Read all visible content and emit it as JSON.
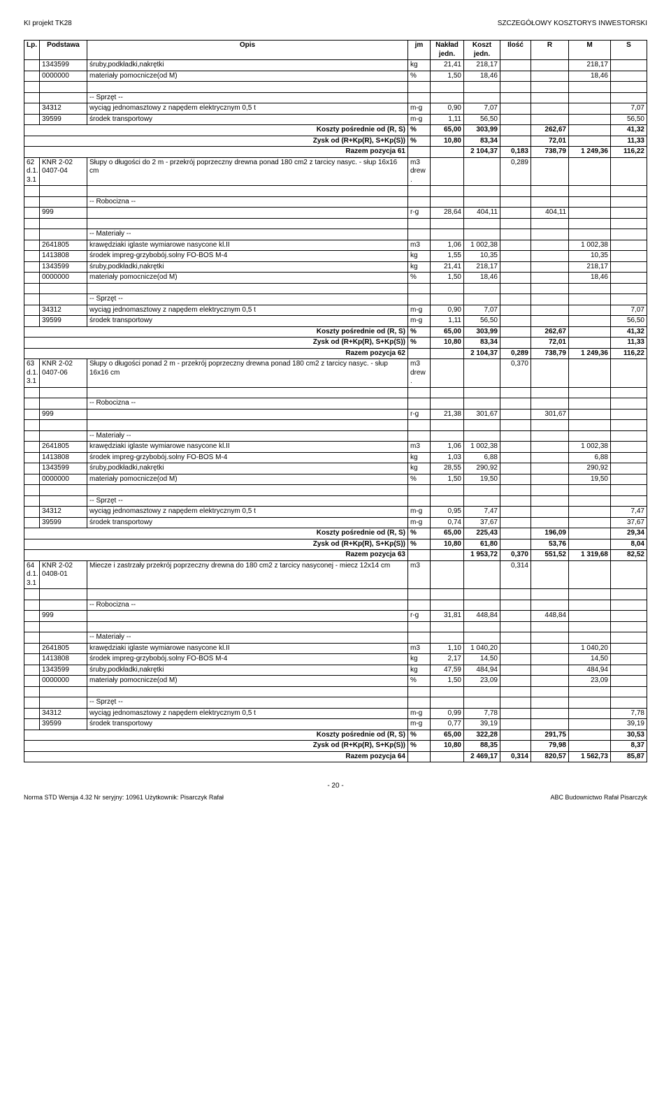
{
  "header": {
    "left": "KI projekt TK28",
    "right": "SZCZEGÓŁOWY KOSZTORYS INWESTORSKI"
  },
  "cols": {
    "lp": "Lp.",
    "podstawa": "Podstawa",
    "opis": "Opis",
    "jm": "jm",
    "naklad": "Nakład\njedn.",
    "koszt": "Koszt\njedn.",
    "ilosc": "Ilość",
    "r": "R",
    "m": "M",
    "s": "S"
  },
  "labels": {
    "materialy": "-- Materiały --",
    "sprzet": "-- Sprzęt --",
    "robocizna": "-- Robocizna --",
    "koszty": "Koszty pośrednie od (R, S)",
    "zysk": "Zysk od (R+Kp(R), S+Kp(S))",
    "razem": "Razem pozycja "
  },
  "groups": [
    {
      "lead": null,
      "blocks": [
        {
          "prefix": null,
          "rows": [
            {
              "lp": "",
              "pod": "1343599",
              "opis": "śruby,podkładki,nakrętki",
              "jm": "kg",
              "nak": "21,41",
              "koszt": "218,17",
              "il": "",
              "r": "",
              "m": "218,17",
              "s": ""
            },
            {
              "lp": "",
              "pod": "0000000",
              "opis": "materiały pomocnicze(od M)",
              "jm": "%",
              "nak": "1,50",
              "koszt": "18,46",
              "il": "",
              "r": "",
              "m": "18,46",
              "s": ""
            }
          ]
        },
        {
          "prefix": "sprzet",
          "rows": [
            {
              "lp": "",
              "pod": "34312",
              "opis": "wyciąg jednomasztowy z napędem elektrycznym 0,5 t",
              "jm": "m-g",
              "nak": "0,90",
              "koszt": "7,07",
              "il": "",
              "r": "",
              "m": "",
              "s": "7,07"
            },
            {
              "lp": "",
              "pod": "39599",
              "opis": "środek transportowy",
              "jm": "m-g",
              "nak": "1,11",
              "koszt": "56,50",
              "il": "",
              "r": "",
              "m": "",
              "s": "56,50"
            }
          ]
        }
      ],
      "summary": [
        {
          "label": "koszty",
          "jm": "%",
          "nak": "65,00",
          "koszt": "303,99",
          "il": "",
          "r": "262,67",
          "m": "",
          "s": "41,32"
        },
        {
          "label": "zysk",
          "jm": "%",
          "nak": "10,80",
          "koszt": "83,34",
          "il": "",
          "r": "72,01",
          "m": "",
          "s": "11,33"
        },
        {
          "label": "razem",
          "n": "61",
          "jm": "",
          "nak": "",
          "koszt": "2 104,37",
          "il": "0,183",
          "r": "738,79",
          "m": "1 249,36",
          "s": "116,22"
        }
      ]
    },
    {
      "lead": {
        "lp": "62\nd.1.\n3.1",
        "pod": "KNR 2-02\n0407-04",
        "opis": "Słupy o długości do 2 m - przekrój poprzeczny drewna ponad 180 cm2 z tarcicy nasyc. - słup 16x16 cm",
        "jm": "m3\ndrew\n.",
        "il": "0,289"
      },
      "blocks": [
        {
          "prefix": "robocizna",
          "rows": [
            {
              "lp": "",
              "pod": "999",
              "opis": "",
              "jm": "r-g",
              "nak": "28,64",
              "koszt": "404,11",
              "il": "",
              "r": "404,11",
              "m": "",
              "s": ""
            }
          ]
        },
        {
          "prefix": "materialy",
          "rows": [
            {
              "lp": "",
              "pod": "2641805",
              "opis": "krawędziaki iglaste wymiarowe nasycone kl.II",
              "jm": "m3",
              "nak": "1,06",
              "koszt": "1 002,38",
              "il": "",
              "r": "",
              "m": "1 002,38",
              "s": ""
            },
            {
              "lp": "",
              "pod": "1413808",
              "opis": "środek impreg-grzybobój.solny FO-BOS M-4",
              "jm": "kg",
              "nak": "1,55",
              "koszt": "10,35",
              "il": "",
              "r": "",
              "m": "10,35",
              "s": ""
            },
            {
              "lp": "",
              "pod": "1343599",
              "opis": "śruby,podkładki,nakrętki",
              "jm": "kg",
              "nak": "21,41",
              "koszt": "218,17",
              "il": "",
              "r": "",
              "m": "218,17",
              "s": ""
            },
            {
              "lp": "",
              "pod": "0000000",
              "opis": "materiały pomocnicze(od M)",
              "jm": "%",
              "nak": "1,50",
              "koszt": "18,46",
              "il": "",
              "r": "",
              "m": "18,46",
              "s": ""
            }
          ]
        },
        {
          "prefix": "sprzet",
          "rows": [
            {
              "lp": "",
              "pod": "34312",
              "opis": "wyciąg jednomasztowy z napędem elektrycznym 0,5 t",
              "jm": "m-g",
              "nak": "0,90",
              "koszt": "7,07",
              "il": "",
              "r": "",
              "m": "",
              "s": "7,07"
            },
            {
              "lp": "",
              "pod": "39599",
              "opis": "środek transportowy",
              "jm": "m-g",
              "nak": "1,11",
              "koszt": "56,50",
              "il": "",
              "r": "",
              "m": "",
              "s": "56,50"
            }
          ]
        }
      ],
      "summary": [
        {
          "label": "koszty",
          "jm": "%",
          "nak": "65,00",
          "koszt": "303,99",
          "il": "",
          "r": "262,67",
          "m": "",
          "s": "41,32"
        },
        {
          "label": "zysk",
          "jm": "%",
          "nak": "10,80",
          "koszt": "83,34",
          "il": "",
          "r": "72,01",
          "m": "",
          "s": "11,33"
        },
        {
          "label": "razem",
          "n": "62",
          "jm": "",
          "nak": "",
          "koszt": "2 104,37",
          "il": "0,289",
          "r": "738,79",
          "m": "1 249,36",
          "s": "116,22"
        }
      ]
    },
    {
      "lead": {
        "lp": "63\nd.1.\n3.1",
        "pod": "KNR 2-02\n0407-06",
        "opis": "Słupy o długości ponad 2 m - przekrój poprzeczny drewna ponad 180 cm2 z tarcicy nasyc. - słup 16x16 cm",
        "jm": "m3\ndrew\n.",
        "il": "0,370"
      },
      "blocks": [
        {
          "prefix": "robocizna",
          "rows": [
            {
              "lp": "",
              "pod": "999",
              "opis": "",
              "jm": "r-g",
              "nak": "21,38",
              "koszt": "301,67",
              "il": "",
              "r": "301,67",
              "m": "",
              "s": ""
            }
          ]
        },
        {
          "prefix": "materialy",
          "rows": [
            {
              "lp": "",
              "pod": "2641805",
              "opis": "krawędziaki iglaste wymiarowe nasycone kl.II",
              "jm": "m3",
              "nak": "1,06",
              "koszt": "1 002,38",
              "il": "",
              "r": "",
              "m": "1 002,38",
              "s": ""
            },
            {
              "lp": "",
              "pod": "1413808",
              "opis": "środek impreg-grzybobój.solny FO-BOS M-4",
              "jm": "kg",
              "nak": "1,03",
              "koszt": "6,88",
              "il": "",
              "r": "",
              "m": "6,88",
              "s": ""
            },
            {
              "lp": "",
              "pod": "1343599",
              "opis": "śruby,podkładki,nakrętki",
              "jm": "kg",
              "nak": "28,55",
              "koszt": "290,92",
              "il": "",
              "r": "",
              "m": "290,92",
              "s": ""
            },
            {
              "lp": "",
              "pod": "0000000",
              "opis": "materiały pomocnicze(od M)",
              "jm": "%",
              "nak": "1,50",
              "koszt": "19,50",
              "il": "",
              "r": "",
              "m": "19,50",
              "s": ""
            }
          ]
        },
        {
          "prefix": "sprzet",
          "rows": [
            {
              "lp": "",
              "pod": "34312",
              "opis": "wyciąg jednomasztowy z napędem elektrycznym 0,5 t",
              "jm": "m-g",
              "nak": "0,95",
              "koszt": "7,47",
              "il": "",
              "r": "",
              "m": "",
              "s": "7,47"
            },
            {
              "lp": "",
              "pod": "39599",
              "opis": "środek transportowy",
              "jm": "m-g",
              "nak": "0,74",
              "koszt": "37,67",
              "il": "",
              "r": "",
              "m": "",
              "s": "37,67"
            }
          ]
        }
      ],
      "summary": [
        {
          "label": "koszty",
          "jm": "%",
          "nak": "65,00",
          "koszt": "225,43",
          "il": "",
          "r": "196,09",
          "m": "",
          "s": "29,34"
        },
        {
          "label": "zysk",
          "jm": "%",
          "nak": "10,80",
          "koszt": "61,80",
          "il": "",
          "r": "53,76",
          "m": "",
          "s": "8,04"
        },
        {
          "label": "razem",
          "n": "63",
          "jm": "",
          "nak": "",
          "koszt": "1 953,72",
          "il": "0,370",
          "r": "551,52",
          "m": "1 319,68",
          "s": "82,52"
        }
      ]
    },
    {
      "lead": {
        "lp": "64\nd.1.\n3.1",
        "pod": "KNR 2-02\n0408-01",
        "opis": "Miecze i zastrzały przekrój poprzeczny drewna do 180 cm2 z tarcicy nasyconej - miecz 12x14 cm",
        "jm": "m3",
        "il": "0,314"
      },
      "blocks": [
        {
          "prefix": "robocizna",
          "rows": [
            {
              "lp": "",
              "pod": "999",
              "opis": "",
              "jm": "r-g",
              "nak": "31,81",
              "koszt": "448,84",
              "il": "",
              "r": "448,84",
              "m": "",
              "s": ""
            }
          ]
        },
        {
          "prefix": "materialy",
          "rows": [
            {
              "lp": "",
              "pod": "2641805",
              "opis": "krawędziaki iglaste wymiarowe nasycone kl.II",
              "jm": "m3",
              "nak": "1,10",
              "koszt": "1 040,20",
              "il": "",
              "r": "",
              "m": "1 040,20",
              "s": ""
            },
            {
              "lp": "",
              "pod": "1413808",
              "opis": "środek impreg-grzybobój.solny FO-BOS M-4",
              "jm": "kg",
              "nak": "2,17",
              "koszt": "14,50",
              "il": "",
              "r": "",
              "m": "14,50",
              "s": ""
            },
            {
              "lp": "",
              "pod": "1343599",
              "opis": "śruby,podkładki,nakrętki",
              "jm": "kg",
              "nak": "47,59",
              "koszt": "484,94",
              "il": "",
              "r": "",
              "m": "484,94",
              "s": ""
            },
            {
              "lp": "",
              "pod": "0000000",
              "opis": "materiały pomocnicze(od M)",
              "jm": "%",
              "nak": "1,50",
              "koszt": "23,09",
              "il": "",
              "r": "",
              "m": "23,09",
              "s": ""
            }
          ]
        },
        {
          "prefix": "sprzet",
          "rows": [
            {
              "lp": "",
              "pod": "34312",
              "opis": "wyciąg jednomasztowy z napędem elektrycznym 0,5 t",
              "jm": "m-g",
              "nak": "0,99",
              "koszt": "7,78",
              "il": "",
              "r": "",
              "m": "",
              "s": "7,78"
            },
            {
              "lp": "",
              "pod": "39599",
              "opis": "środek transportowy",
              "jm": "m-g",
              "nak": "0,77",
              "koszt": "39,19",
              "il": "",
              "r": "",
              "m": "",
              "s": "39,19"
            }
          ]
        }
      ],
      "summary": [
        {
          "label": "koszty",
          "jm": "%",
          "nak": "65,00",
          "koszt": "322,28",
          "il": "",
          "r": "291,75",
          "m": "",
          "s": "30,53"
        },
        {
          "label": "zysk",
          "jm": "%",
          "nak": "10,80",
          "koszt": "88,35",
          "il": "",
          "r": "79,98",
          "m": "",
          "s": "8,37"
        },
        {
          "label": "razem",
          "n": "64",
          "jm": "",
          "nak": "",
          "koszt": "2 469,17",
          "il": "0,314",
          "r": "820,57",
          "m": "1 562,73",
          "s": "85,87"
        }
      ]
    }
  ],
  "page": "- 20 -",
  "footer": {
    "left": "Norma STD Wersja 4.32 Nr seryjny: 10961 Użytkownik: Pisarczyk Rafał",
    "right": "ABC Budownictwo Rafał Pisarczyk"
  }
}
